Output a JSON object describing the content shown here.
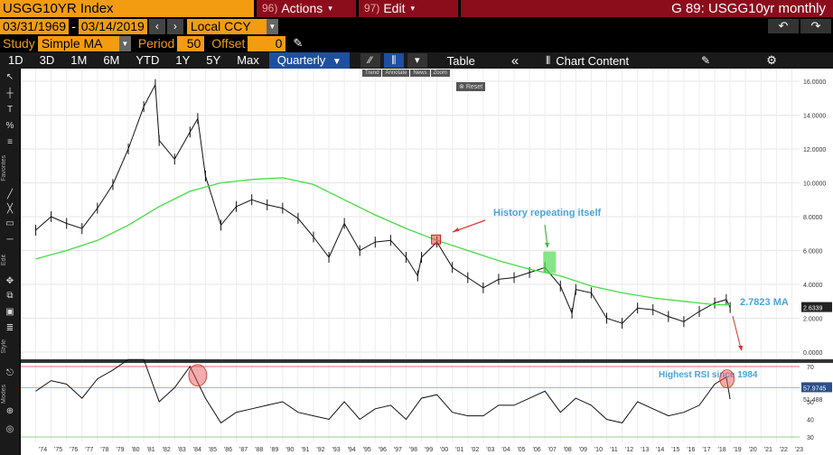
{
  "header": {
    "security": "USGG10YR Index",
    "actions_num": "96)",
    "actions_label": "Actions",
    "edit_num": "97)",
    "edit_label": "Edit",
    "function_title": "G 89: USGG10yr monthly"
  },
  "controls": {
    "start_date": "03/31/1969",
    "separator": "-",
    "end_date": "03/14/2019",
    "currency": "Local CCY",
    "study_label": "Study",
    "study_value": "Simple MA",
    "period_label": "Period",
    "period_value": "50",
    "offset_label": "Offset",
    "offset_value": "0"
  },
  "toolbar": {
    "timeframes": [
      "1D",
      "3D",
      "1M",
      "6M",
      "YTD",
      "1Y",
      "5Y",
      "Max"
    ],
    "frequency": "Quarterly",
    "table_label": "Table",
    "chart_content_label": "Chart Content",
    "mini_tools": [
      "Trend",
      "Annotate",
      "News",
      "Zoom"
    ],
    "reset_label": "Reset"
  },
  "left_toolbar": {
    "sections": [
      "Favorites",
      "Edit",
      "Style",
      "Modes"
    ]
  },
  "colors": {
    "orange": "#f39c12",
    "maroon": "#8b0d1c",
    "ma_line": "#44dd44",
    "annotation": "#4aa3df",
    "arrow": "#e03030"
  },
  "chart_data": [
    {
      "type": "line",
      "title": "",
      "series": [
        {
          "name": "USGG10YR Index",
          "x": [
            1974,
            1975,
            1976,
            1977,
            1978,
            1979,
            1980,
            1981,
            1981.75,
            1982,
            1983,
            1984,
            1984.5,
            1985,
            1986,
            1987,
            1988,
            1989,
            1990,
            1991,
            1992,
            1993,
            1994,
            1995,
            1996,
            1997,
            1998,
            1998.75,
            1999,
            2000,
            2001,
            2002,
            2003,
            2004,
            2005,
            2006,
            2007,
            2008,
            2008.75,
            2009,
            2010,
            2011,
            2012,
            2013,
            2014,
            2015,
            2016,
            2017,
            2018,
            2018.75,
            2019
          ],
          "values": [
            7.2,
            8.0,
            7.6,
            7.3,
            8.5,
            9.9,
            12.0,
            14.5,
            15.8,
            12.5,
            11.4,
            13.0,
            13.8,
            10.4,
            7.5,
            8.6,
            9.0,
            8.7,
            8.5,
            7.9,
            6.8,
            5.6,
            7.6,
            6.0,
            6.5,
            6.6,
            5.6,
            4.5,
            5.6,
            6.5,
            5.0,
            4.4,
            3.8,
            4.3,
            4.4,
            4.7,
            5.0,
            3.9,
            2.3,
            3.7,
            3.5,
            2.0,
            1.7,
            2.6,
            2.5,
            2.1,
            1.8,
            2.4,
            2.9,
            3.1,
            2.6339
          ]
        },
        {
          "name": "Simple MA (50)",
          "x": [
            1974,
            1976,
            1978,
            1980,
            1982,
            1984,
            1986,
            1988,
            1990,
            1992,
            1994,
            1996,
            1998,
            2000,
            2002,
            2004,
            2006,
            2008,
            2010,
            2012,
            2014,
            2016,
            2018,
            2019
          ],
          "values": [
            5.5,
            6.0,
            6.6,
            7.5,
            8.6,
            9.5,
            10.0,
            10.2,
            10.3,
            9.9,
            9.0,
            8.1,
            7.3,
            6.6,
            6.0,
            5.4,
            4.9,
            4.5,
            3.9,
            3.5,
            3.2,
            3.0,
            2.8,
            2.7823
          ]
        }
      ],
      "ylim": [
        0,
        16
      ],
      "yticks": [
        "16.0000",
        "14.0000",
        "12.0000",
        "10.0000",
        "8.0000",
        "6.0000",
        "4.0000",
        "2.0000",
        "0.0000"
      ],
      "last_price_label": "2.6339",
      "ma_label": "2.7823  MA",
      "annotations": [
        "History repeating itself"
      ]
    },
    {
      "type": "line",
      "title": "",
      "series": [
        {
          "name": "RSI",
          "x": [
            1974,
            1975,
            1976,
            1977,
            1978,
            1979,
            1980,
            1981,
            1982,
            1983,
            1984,
            1985,
            1986,
            1987,
            1988,
            1989,
            1990,
            1991,
            1992,
            1993,
            1994,
            1995,
            1996,
            1997,
            1998,
            1999,
            2000,
            2001,
            2002,
            2003,
            2004,
            2005,
            2006,
            2007,
            2008,
            2009,
            2010,
            2011,
            2012,
            2013,
            2014,
            2015,
            2016,
            2017,
            2018,
            2018.75,
            2019
          ],
          "values": [
            56,
            62,
            60,
            52,
            63,
            68,
            74,
            74,
            50,
            58,
            70,
            52,
            38,
            44,
            46,
            48,
            50,
            44,
            42,
            40,
            50,
            40,
            46,
            48,
            40,
            52,
            54,
            44,
            42,
            42,
            48,
            48,
            52,
            56,
            44,
            52,
            48,
            40,
            38,
            50,
            46,
            42,
            44,
            48,
            60,
            64,
            51.488
          ]
        }
      ],
      "ylim": [
        30,
        70
      ],
      "yticks": [
        "70",
        "60",
        "50",
        "40",
        "30"
      ],
      "rsi_value_label": "57.9745",
      "rsi_last_label": "51.488",
      "annotations": [
        "Highest RSI since 1984"
      ]
    }
  ],
  "x_axis": {
    "years": [
      "'74",
      "'75",
      "'76",
      "'77",
      "'78",
      "'79",
      "'80",
      "'81",
      "'82",
      "'83",
      "'84",
      "'85",
      "'86",
      "'87",
      "'88",
      "'89",
      "'90",
      "'91",
      "'92",
      "'93",
      "'94",
      "'95",
      "'96",
      "'97",
      "'98",
      "'99",
      "'00",
      "'01",
      "'02",
      "'03",
      "'04",
      "'05",
      "'06",
      "'07",
      "'08",
      "'09",
      "'10",
      "'11",
      "'12",
      "'13",
      "'14",
      "'15",
      "'16",
      "'17",
      "'18",
      "'19",
      "'20",
      "'21",
      "'22",
      "'23"
    ]
  }
}
